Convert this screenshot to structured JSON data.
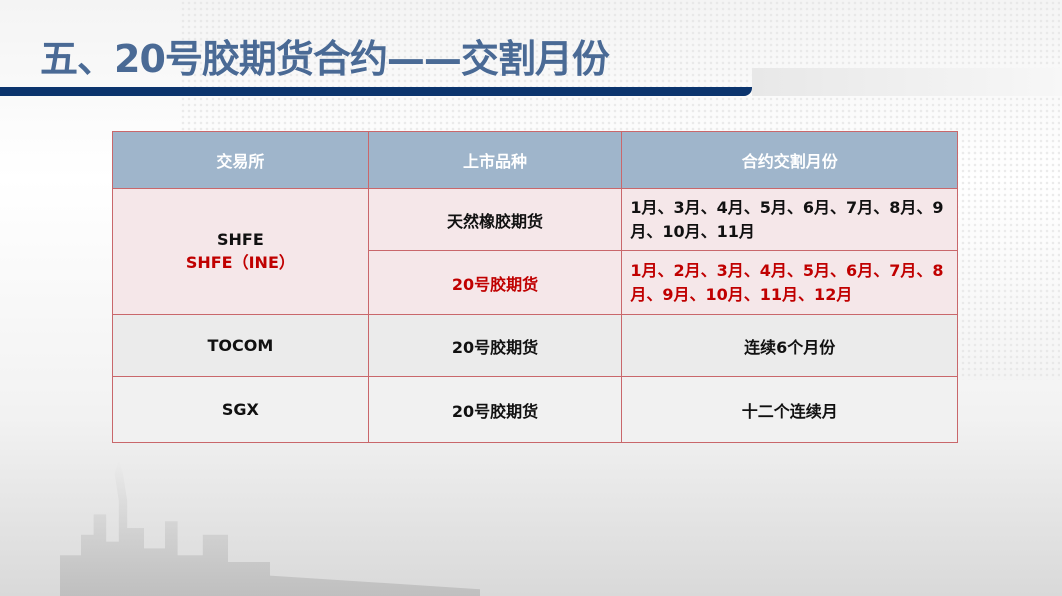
{
  "title": "五、20号胶期货合约——交割月份",
  "table": {
    "headers": [
      "交易所",
      "上市品种",
      "合约交割月份"
    ],
    "rows": [
      {
        "exchange": "SHFE",
        "exchange2": "SHFE（INE）",
        "product": "天然橡胶期货",
        "months": "1月、3月、4月、5月、6月、7月、8月、9月、10月、11月"
      },
      {
        "product": "20号胶期货",
        "months": "1月、2月、3月、4月、5月、6月、7月、8月、9月、10月、11月、12月"
      },
      {
        "exchange": "TOCOM",
        "product": "20号胶期货",
        "months": "连续6个月份"
      },
      {
        "exchange": "SGX",
        "product": "20号胶期货",
        "months": "十二个连续月"
      }
    ]
  },
  "colors": {
    "title": "#4a6a95",
    "header": "#9fb5cb",
    "highlight": "#c00000",
    "rule": "#0b346d"
  }
}
